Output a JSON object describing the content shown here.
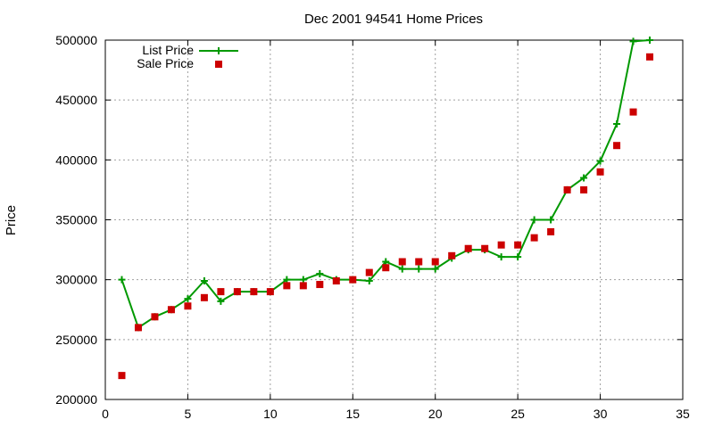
{
  "chart_data": {
    "type": "line",
    "title": "Dec 2001 94541 Home Prices",
    "xlabel": "",
    "ylabel": "Price",
    "xlim": [
      0,
      35
    ],
    "ylim": [
      200000,
      500000
    ],
    "x_ticks": [
      0,
      5,
      10,
      15,
      20,
      25,
      30,
      35
    ],
    "y_ticks": [
      200000,
      250000,
      300000,
      350000,
      400000,
      450000,
      500000
    ],
    "x_tick_labels": [
      "0",
      "5",
      "10",
      "15",
      "20",
      "25",
      "30",
      "35"
    ],
    "y_tick_labels": [
      "200000",
      "250000",
      "300000",
      "350000",
      "400000",
      "450000",
      "500000"
    ],
    "grid": true,
    "legend_position": "top-left",
    "series": [
      {
        "name": "List Price",
        "style": "line-with-plus-markers",
        "color": "#009900",
        "x": [
          1,
          2,
          3,
          4,
          5,
          6,
          7,
          8,
          9,
          10,
          11,
          12,
          13,
          14,
          15,
          16,
          17,
          18,
          19,
          20,
          21,
          22,
          23,
          24,
          25,
          26,
          27,
          28,
          29,
          30,
          31,
          32,
          33
        ],
        "values": [
          300000,
          260000,
          269000,
          275000,
          284000,
          299000,
          282000,
          290000,
          290000,
          290000,
          300000,
          300000,
          305000,
          300000,
          300000,
          299000,
          315000,
          309000,
          309000,
          309000,
          318000,
          325000,
          325000,
          319000,
          319000,
          350000,
          350000,
          375000,
          385000,
          399000,
          430000,
          499000,
          500000
        ]
      },
      {
        "name": "Sale Price",
        "style": "square-markers",
        "color": "#cc0000",
        "x": [
          1,
          2,
          3,
          4,
          5,
          6,
          7,
          8,
          9,
          10,
          11,
          12,
          13,
          14,
          15,
          16,
          17,
          18,
          19,
          20,
          21,
          22,
          23,
          24,
          25,
          26,
          27,
          28,
          29,
          30,
          31,
          32,
          33
        ],
        "values": [
          220000,
          260000,
          269000,
          275000,
          278000,
          285000,
          290000,
          290000,
          290000,
          290000,
          295000,
          295000,
          296000,
          299000,
          300000,
          306000,
          310000,
          315000,
          315000,
          315000,
          320000,
          326000,
          326000,
          329000,
          329000,
          335000,
          340000,
          375000,
          375000,
          390000,
          412000,
          440000,
          486000
        ]
      }
    ]
  }
}
